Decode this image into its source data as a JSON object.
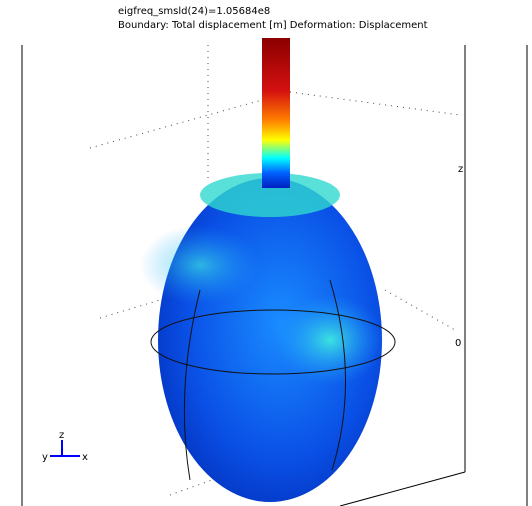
{
  "header": {
    "title": "eigfreq_smsld(24)=1.05684e8",
    "subtitle": "Boundary: Total displacement [m]   Deformation: Displacement"
  },
  "axis_labels": {
    "z": "z",
    "zero": "0"
  },
  "triad": {
    "z": "z",
    "y": "y",
    "x": "x"
  }
}
